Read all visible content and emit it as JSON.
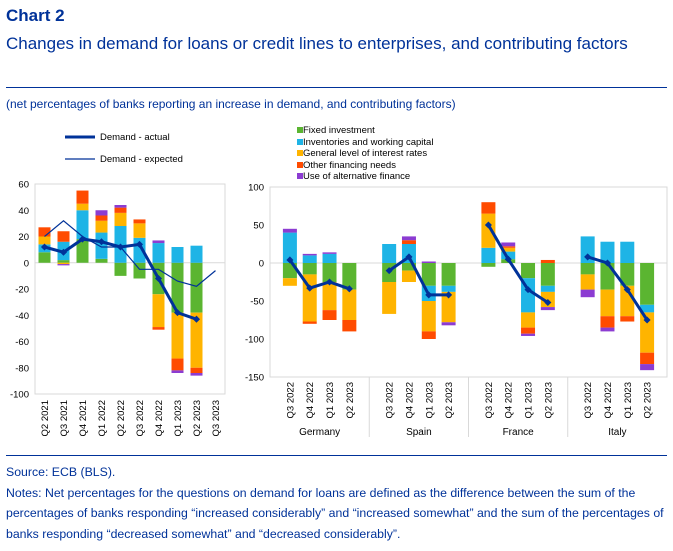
{
  "header": {
    "chart_label": "Chart 2",
    "title": "Changes in demand for loans or credit lines to enterprises, and contributing factors",
    "subtitle": "(net percentages of banks reporting an increase in demand, and contributing factors)"
  },
  "footer": {
    "source": "Source: ECB (BLS).",
    "notes": "Notes: Net percentages for the questions on demand for loans are defined as the difference between the sum of the percentages of banks responding “increased considerably” and “increased somewhat” and the sum of the percentages of banks responding “decreased somewhat” and “decreased considerably”."
  },
  "colors": {
    "fixed_investment": "#5bb531",
    "inventories": "#1eb4e6",
    "interest_rates": "#ffb400",
    "other_financing": "#ff4b00",
    "alternative_finance": "#8c3cd2",
    "demand_line": "#003299",
    "axis": "#d9d9d9",
    "tick_text": "#000000"
  },
  "chart_data": [
    {
      "id": "euro-area",
      "type": "bar",
      "stacked": true,
      "categories": [
        "Q2 2021",
        "Q3 2021",
        "Q4 2021",
        "Q1 2022",
        "Q2 2022",
        "Q3 2022",
        "Q4 2022",
        "Q1 2023",
        "Q2 2023",
        "Q3 2023"
      ],
      "ylim": [
        -100,
        60
      ],
      "yticks": [
        60,
        40,
        20,
        0,
        -20,
        -40,
        -60,
        -80,
        -100
      ],
      "series": [
        {
          "name": "Fixed investment",
          "color_key": "fixed_investment",
          "values": [
            8,
            2,
            18,
            3,
            -10,
            -12,
            -24,
            -38,
            -38,
            null
          ]
        },
        {
          "name": "Inventories and working capital",
          "color_key": "inventories",
          "values": [
            6,
            14,
            22,
            20,
            28,
            19,
            15,
            12,
            13,
            null
          ]
        },
        {
          "name": "General level of interest rates",
          "color_key": "interest_rates",
          "values": [
            6,
            -1,
            5,
            9,
            10,
            11,
            -25,
            -35,
            -42,
            null
          ]
        },
        {
          "name": "Other financing needs",
          "color_key": "other_financing",
          "values": [
            7,
            8,
            10,
            4,
            4,
            3,
            -2,
            -9,
            -4,
            null
          ]
        },
        {
          "name": "Use of alternative finance",
          "color_key": "alternative_finance",
          "values": [
            0,
            -1,
            0,
            4,
            2,
            0,
            2,
            -2,
            -2,
            null
          ]
        }
      ],
      "lines": [
        {
          "name": "Demand - actual",
          "values": [
            12,
            8,
            18,
            16,
            12,
            14,
            -12,
            -38,
            -43,
            null
          ]
        },
        {
          "name": "Demand - expected",
          "values": [
            20,
            32,
            20,
            12,
            12,
            -5,
            -5,
            -14,
            -18,
            -6
          ]
        }
      ]
    },
    {
      "id": "countries",
      "type": "bar",
      "stacked": true,
      "groups": [
        "Germany",
        "Spain",
        "France",
        "Italy"
      ],
      "categories": [
        "Q3 2022",
        "Q4 2022",
        "Q1 2023",
        "Q2 2023"
      ],
      "ylim": [
        -150,
        100
      ],
      "yticks": [
        100,
        50,
        0,
        -50,
        -100,
        -150
      ],
      "series": [
        {
          "name": "Fixed investment",
          "color_key": "fixed_investment",
          "values": [
            [
              -20,
              -15,
              -25,
              -35
            ],
            [
              -25,
              -10,
              -30,
              -30
            ],
            [
              -5,
              5,
              -20,
              -30
            ],
            [
              -15,
              -35,
              -30,
              -55
            ]
          ]
        },
        {
          "name": "Inventories and working capital",
          "color_key": "inventories",
          "values": [
            [
              40,
              10,
              12,
              0
            ],
            [
              25,
              25,
              -20,
              -8
            ],
            [
              20,
              10,
              -45,
              -8
            ],
            [
              35,
              28,
              28,
              -10
            ]
          ]
        },
        {
          "name": "General level of interest rates",
          "color_key": "interest_rates",
          "values": [
            [
              -10,
              -62,
              -37,
              -40
            ],
            [
              -42,
              -15,
              -40,
              -40
            ],
            [
              45,
              5,
              -20,
              -20
            ],
            [
              -20,
              -35,
              -40,
              -53
            ]
          ]
        },
        {
          "name": "Other financing needs",
          "color_key": "other_financing",
          "values": [
            [
              0,
              -3,
              -13,
              -15
            ],
            [
              0,
              5,
              -10,
              0
            ],
            [
              15,
              2,
              -8,
              4
            ],
            [
              0,
              -15,
              -7,
              -15
            ]
          ]
        },
        {
          "name": "Use of alternative finance",
          "color_key": "alternative_finance",
          "values": [
            [
              5,
              2,
              2,
              0
            ],
            [
              0,
              5,
              2,
              -4
            ],
            [
              0,
              5,
              -3,
              -4
            ],
            [
              -10,
              -5,
              0,
              -8
            ]
          ]
        }
      ],
      "lines": [
        {
          "name": "Demand - actual",
          "values": [
            [
              4,
              -33,
              -25,
              -34
            ],
            [
              -10,
              8,
              -42,
              -42
            ],
            [
              50,
              5,
              -35,
              -52
            ],
            [
              8,
              0,
              -35,
              -75
            ]
          ]
        }
      ]
    }
  ],
  "legend": {
    "line_items": [
      "Demand - actual",
      "Demand - expected"
    ],
    "bar_items": [
      "Fixed investment",
      "Inventories and working capital",
      "General level of interest rates",
      "Other financing needs",
      "Use of alternative finance"
    ]
  }
}
